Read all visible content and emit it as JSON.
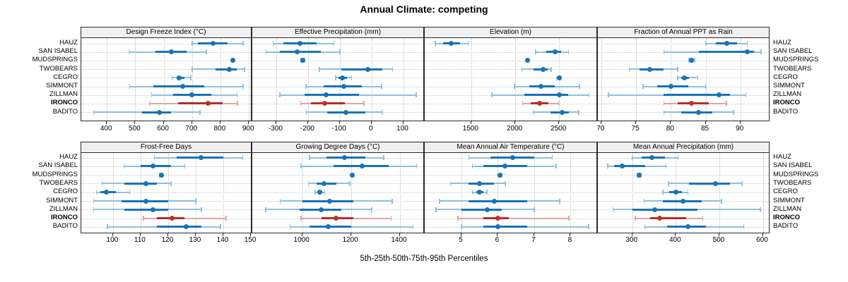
{
  "title": "Annual Climate: competing",
  "caption": "5th-25th-50th-75th-95th Percentiles",
  "sites": [
    "HAUZ",
    "SAN ISABEL",
    "MUDSPRINGS",
    "TWOBEARS",
    "CEGRO",
    "SIMMONT",
    "ZILLMAN",
    "IRONCO",
    "BADITO"
  ],
  "highlight_site": "IRONCO",
  "colors": {
    "blue": "#1874b4",
    "blue_light": "#8fc0dc",
    "red": "#b03128",
    "red_light": "#dba8a2",
    "red_dot": "#c03425",
    "grid": "#c6c6c6",
    "strip_bg": "#f0f0f0",
    "panel_border": "#2a2a2a"
  },
  "chart_data": {
    "type": "dot-whisker trellis (lattice segplot)",
    "percentiles": [
      5,
      25,
      50,
      75,
      95
    ],
    "legend": "none",
    "grid": "dotted",
    "site_order_top_to_bottom": [
      "HAUZ",
      "SAN ISABEL",
      "MUDSPRINGS",
      "TWOBEARS",
      "CEGRO",
      "SIMMONT",
      "ZILLMAN",
      "IRONCO",
      "BADITO"
    ],
    "panels": [
      {
        "title": "Design Freeze Index (°C)",
        "row": 0,
        "col": 0,
        "domain": [
          310,
          912
        ],
        "ticks": [
          400,
          500,
          600,
          700,
          800,
          900
        ],
        "series": {
          "HAUZ": [
            700,
            720,
            775,
            825,
            880
          ],
          "SAN ISABEL": [
            478,
            570,
            628,
            680,
            750
          ],
          "MUDSPRINGS": [
            838,
            841,
            843,
            845,
            848
          ],
          "TWOBEARS": [
            700,
            783,
            830,
            858,
            885
          ],
          "CEGRO": [
            630,
            645,
            655,
            672,
            695
          ],
          "SIMMONT": [
            480,
            563,
            668,
            742,
            880
          ],
          "ZILLMAN": [
            557,
            633,
            700,
            767,
            858
          ],
          "IRONCO": [
            550,
            650,
            757,
            808,
            860
          ],
          "BADITO": [
            354,
            525,
            585,
            625,
            728
          ]
        }
      },
      {
        "title": "Effective Precipitation (mm)",
        "row": 0,
        "col": 1,
        "domain": [
          -376,
          168
        ],
        "ticks": [
          -300,
          -200,
          -100,
          0,
          100
        ],
        "series": {
          "HAUZ": [
            -310,
            -278,
            -226,
            -173,
            -119
          ],
          "SAN ISABEL": [
            -333,
            -290,
            -235,
            -160,
            -100
          ],
          "MUDSPRINGS": [
            -222,
            -219,
            -216,
            -213,
            -210
          ],
          "TWOBEARS": [
            -164,
            -95,
            -12,
            35,
            66
          ],
          "CEGRO": [
            -113,
            -103,
            -91,
            -78,
            -63
          ],
          "SIMMONT": [
            -207,
            -150,
            -88,
            -30,
            32
          ],
          "ZILLMAN": [
            -289,
            -210,
            -143,
            -40,
            141
          ],
          "IRONCO": [
            -223,
            -190,
            -147,
            -85,
            -24
          ],
          "BADITO": [
            -205,
            -140,
            -80,
            -20,
            35
          ]
        }
      },
      {
        "title": "Elevation (m)",
        "row": 0,
        "col": 2,
        "domain": [
          970,
          2940
        ],
        "ticks": [
          1500,
          2000,
          2500
        ],
        "series": {
          "HAUZ": [
            1090,
            1180,
            1270,
            1370,
            1465
          ],
          "SAN ISABEL": [
            2233,
            2350,
            2450,
            2520,
            2605
          ],
          "MUDSPRINGS": [
            2130,
            2137,
            2143,
            2149,
            2155
          ],
          "TWOBEARS": [
            2075,
            2210,
            2320,
            2370,
            2410
          ],
          "CEGRO": [
            2470,
            2485,
            2498,
            2508,
            2515
          ],
          "SIMMONT": [
            1990,
            2160,
            2293,
            2450,
            2730
          ],
          "ZILLMAN": [
            1735,
            2100,
            2498,
            2600,
            2840
          ],
          "IRONCO": [
            2082,
            2180,
            2279,
            2380,
            2492
          ],
          "BADITO": [
            2203,
            2400,
            2531,
            2610,
            2722
          ]
        }
      },
      {
        "title": "Fraction of Annual PPT as Rain",
        "row": 0,
        "col": 3,
        "domain": [
          69.5,
          94.3
        ],
        "ticks": [
          70,
          75,
          80,
          85,
          90
        ],
        "series": {
          "HAUZ": [
            85,
            86.5,
            88,
            89.5,
            91
          ],
          "SAN ISABEL": [
            79,
            84,
            91,
            92,
            93
          ],
          "MUDSPRINGS": [
            82.6,
            82.8,
            83,
            83.2,
            83.4
          ],
          "TWOBEARS": [
            74,
            75.5,
            77,
            79,
            81
          ],
          "CEGRO": [
            81,
            81.5,
            82,
            82.6,
            83.9
          ],
          "SIMMONT": [
            76,
            78,
            80,
            82.5,
            85
          ],
          "ZILLMAN": [
            71,
            79,
            86.9,
            88.5,
            90.8
          ],
          "IRONCO": [
            79,
            81,
            83,
            85.5,
            88
          ],
          "BADITO": [
            79,
            81.5,
            84,
            86,
            89
          ]
        }
      },
      {
        "title": "Frost-Free Days",
        "row": 1,
        "col": 0,
        "domain": [
          88.5,
          150.5
        ],
        "ticks": [
          100,
          110,
          120,
          130,
          140,
          150
        ],
        "series": {
          "HAUZ": [
            115,
            123,
            132,
            140,
            147
          ],
          "SAN ISABEL": [
            104,
            110,
            114.5,
            121,
            126
          ],
          "MUDSPRINGS": [
            117,
            117.3,
            117.5,
            117.8,
            118
          ],
          "TWOBEARS": [
            96,
            104,
            112,
            116,
            121
          ],
          "CEGRO": [
            94,
            95.5,
            97.5,
            101,
            106
          ],
          "SIMMONT": [
            93,
            103,
            112,
            120,
            130
          ],
          "ZILLMAN": [
            93,
            104,
            114.5,
            120,
            132
          ],
          "IRONCO": [
            111,
            116,
            121.5,
            126,
            141
          ],
          "BADITO": [
            98,
            116,
            126.5,
            132,
            139
          ]
        }
      },
      {
        "title": "Growing Degree Days (°C)",
        "row": 1,
        "col": 1,
        "domain": [
          795,
          1503
        ],
        "ticks": [
          1000,
          1200,
          1400
        ],
        "series": {
          "HAUZ": [
            1030,
            1100,
            1175,
            1260,
            1335
          ],
          "SAN ISABEL": [
            995,
            1130,
            1245,
            1355,
            1470
          ],
          "MUDSPRINGS": [
            1200,
            1203,
            1206,
            1209,
            1212
          ],
          "TWOBEARS": [
            1025,
            1060,
            1090,
            1140,
            1195
          ],
          "CEGRO": [
            1053,
            1062,
            1071,
            1082,
            1093
          ],
          "SIMMONT": [
            910,
            1000,
            1113,
            1210,
            1370
          ],
          "ZILLMAN": [
            850,
            990,
            1079,
            1160,
            1285
          ],
          "IRONCO": [
            995,
            1080,
            1139,
            1210,
            1365
          ],
          "BADITO": [
            950,
            1030,
            1106,
            1200,
            1455
          ]
        }
      },
      {
        "title": "Mean Annual Air Temperature (°C)",
        "row": 1,
        "col": 2,
        "domain": [
          3.99,
          8.75
        ],
        "ticks": [
          5,
          6,
          7,
          8
        ],
        "series": {
          "HAUZ": [
            5.2,
            5.8,
            6.4,
            7.0,
            7.5
          ],
          "SAN ISABEL": [
            5.3,
            5.6,
            6.2,
            6.8,
            7.6
          ],
          "MUDSPRINGS": [
            6.0,
            6.03,
            6.06,
            6.09,
            6.12
          ],
          "TWOBEARS": [
            4.7,
            5.2,
            5.5,
            5.9,
            6.2
          ],
          "CEGRO": [
            5.3,
            5.4,
            5.5,
            5.6,
            5.7
          ],
          "SIMMONT": [
            4.4,
            5.2,
            5.9,
            6.8,
            7.7
          ],
          "ZILLMAN": [
            4.3,
            5.0,
            5.7,
            6.1,
            7.0
          ],
          "IRONCO": [
            4.9,
            5.6,
            6.0,
            6.3,
            7.95
          ],
          "BADITO": [
            5.0,
            5.6,
            6.0,
            6.8,
            8.5
          ]
        }
      },
      {
        "title": "Mean Annual Precipitation (mm)",
        "row": 1,
        "col": 3,
        "domain": [
          221,
          617
        ],
        "ticks": [
          300,
          400,
          500,
          600
        ],
        "series": {
          "HAUZ": [
            300,
            322,
            345,
            375,
            405
          ],
          "SAN ISABEL": [
            244,
            258,
            277,
            330,
            378
          ],
          "MUDSPRINGS": [
            312,
            314,
            316,
            318,
            320
          ],
          "TWOBEARS": [
            383,
            430,
            491,
            525,
            552
          ],
          "CEGRO": [
            370,
            385,
            400,
            414,
            428
          ],
          "SIMMONT": [
            327,
            370,
            417,
            460,
            505
          ],
          "ZILLMAN": [
            256,
            300,
            352,
            450,
            594
          ],
          "IRONCO": [
            307,
            341,
            363,
            424,
            462
          ],
          "BADITO": [
            329,
            380,
            428,
            470,
            556
          ]
        }
      }
    ]
  }
}
